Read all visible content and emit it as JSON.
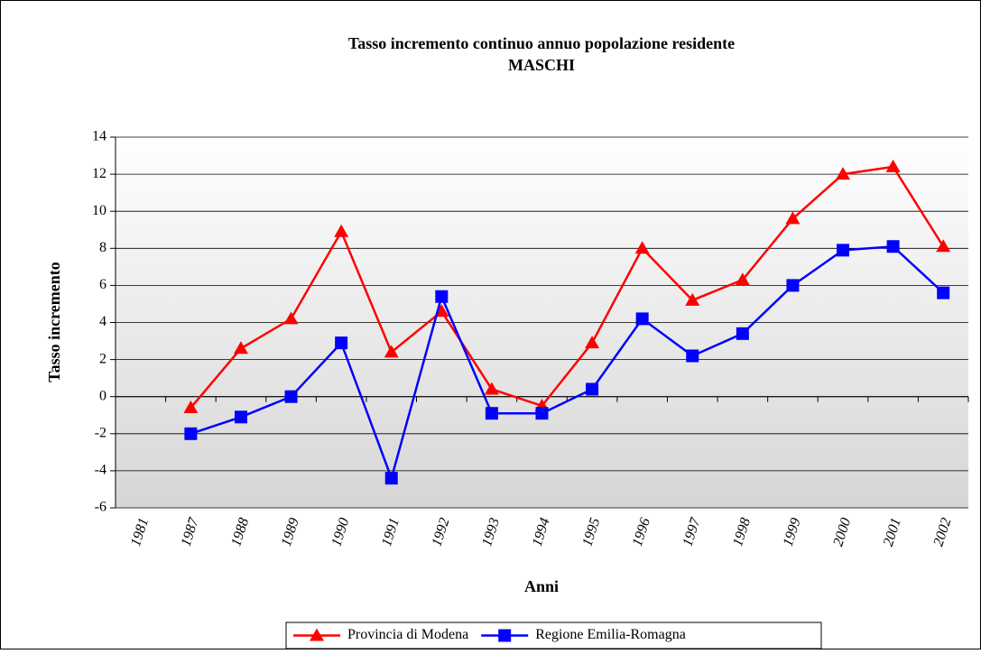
{
  "chart_data": {
    "type": "line",
    "title": "Tasso incremento continuo annuo popolazione residente",
    "subtitle": "MASCHI",
    "x_label": "Anni",
    "y_label": "Tasso incremento",
    "categories": [
      "1981",
      "1987",
      "1988",
      "1989",
      "1990",
      "1991",
      "1992",
      "1993",
      "1994",
      "1995",
      "1996",
      "1997",
      "1998",
      "1999",
      "2000",
      "2001",
      "2002"
    ],
    "series": [
      {
        "name": "Provincia di Modena",
        "color": "#ff0000",
        "marker": "triangle",
        "values": [
          null,
          -0.6,
          2.6,
          4.2,
          8.9,
          2.4,
          4.6,
          0.4,
          -0.5,
          2.9,
          8.0,
          5.2,
          6.3,
          9.6,
          12.0,
          12.4,
          8.1
        ]
      },
      {
        "name": "Regione Emilia-Romagna",
        "color": "#0000ff",
        "marker": "square",
        "values": [
          null,
          -2.0,
          -1.1,
          0,
          2.9,
          -4.4,
          5.4,
          -0.9,
          -0.9,
          0.4,
          4.2,
          2.2,
          3.4,
          6.0,
          7.9,
          8.1,
          5.6
        ]
      }
    ],
    "ylim": [
      -6,
      14
    ],
    "yticks": [
      -6,
      -4,
      -2,
      0,
      2,
      4,
      6,
      8,
      10,
      12,
      14
    ],
    "grid": true,
    "legend": "bottom"
  }
}
